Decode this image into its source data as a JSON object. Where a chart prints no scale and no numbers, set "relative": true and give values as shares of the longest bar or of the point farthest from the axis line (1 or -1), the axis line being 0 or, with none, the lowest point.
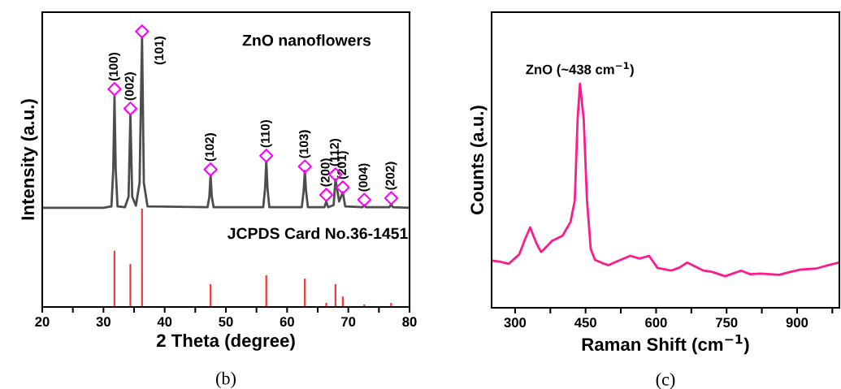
{
  "chart_data": [
    {
      "type": "line",
      "relative": true,
      "xlabel": "2 Theta (degree)",
      "ylabel": "Intensity (a.u.)",
      "tick_labels": "x",
      "xlim": [
        20,
        80
      ],
      "xticks": [
        20,
        {
          "value": 25,
          "label": null
        },
        30,
        {
          "value": 35,
          "label": null
        },
        40,
        {
          "value": 45,
          "label": null
        },
        50,
        {
          "value": 55,
          "label": null
        },
        60,
        {
          "value": 65,
          "label": null
        },
        70,
        {
          "value": 75,
          "label": null
        },
        80
      ],
      "series": [
        {
          "color": "#4d4d4d",
          "x": [
            20,
            30,
            31.3,
            31.6,
            31.8,
            32.0,
            32.3,
            33.5,
            34.1,
            34.4,
            34.7,
            35.3,
            35.9,
            36.3,
            36.6,
            37.2,
            47.0,
            47.3,
            47.5,
            47.7,
            48.0,
            56.1,
            56.4,
            56.6,
            56.8,
            57.1,
            62.4,
            62.7,
            62.9,
            63.1,
            63.4,
            66.1,
            66.4,
            66.7,
            67.6,
            67.9,
            68.5,
            69.1,
            69.5,
            72.3,
            72.6,
            72.9,
            76.7,
            77.0,
            77.3,
            80
          ],
          "values": [
            0.36,
            0.36,
            0.365,
            0.5,
            0.764,
            0.5,
            0.365,
            0.362,
            0.4,
            0.696,
            0.4,
            0.368,
            0.45,
            0.979,
            0.45,
            0.365,
            0.362,
            0.4,
            0.478,
            0.4,
            0.362,
            0.362,
            0.43,
            0.528,
            0.43,
            0.362,
            0.362,
            0.42,
            0.493,
            0.42,
            0.362,
            0.362,
            0.383,
            0.362,
            0.37,
            0.463,
            0.383,
            0.416,
            0.365,
            0.362,
            0.369,
            0.362,
            0.362,
            0.372,
            0.362,
            0.36
          ]
        },
        {
          "type": "scatter",
          "marker": "diamond",
          "color": "#ff00ff",
          "x": [
            31.8,
            34.4,
            36.3,
            47.5,
            56.6,
            62.9,
            66.4,
            67.9,
            69.1,
            72.6,
            77.0
          ],
          "values": [
            0.791,
            0.72,
            1.0,
            0.499,
            0.549,
            0.51,
            0.407,
            0.481,
            0.434,
            0.389,
            0.395
          ]
        },
        {
          "type": "bar",
          "color": "#f03c3c",
          "x": [
            31.8,
            34.4,
            36.3,
            47.5,
            56.6,
            62.9,
            66.4,
            67.9,
            69.1,
            72.6,
            77.0
          ],
          "values": [
            0.204,
            0.156,
            0.357,
            0.083,
            0.115,
            0.103,
            0.015,
            0.083,
            0.038,
            0.009,
            0.015
          ]
        }
      ],
      "annotations": [
        "ZnO nanoflowers",
        "JCPDS Card No.36-1451",
        "(b)",
        {
          "text": "(100)",
          "x": 31.8,
          "y": 0.791
        },
        {
          "text": "(002)",
          "x": 34.4,
          "y": 0.72
        },
        {
          "text": "(101)",
          "x": 36.3,
          "y": 1.0
        },
        {
          "text": "(102)",
          "x": 47.5,
          "y": 0.499
        },
        {
          "text": "(110)",
          "x": 56.6,
          "y": 0.549
        },
        {
          "text": "(103)",
          "x": 62.9,
          "y": 0.51
        },
        {
          "text": "(200)",
          "x": 66.4,
          "y": 0.407
        },
        {
          "text": "(112)",
          "x": 67.9,
          "y": 0.481
        },
        {
          "text": "(201)",
          "x": 69.1,
          "y": 0.434
        },
        {
          "text": "(004)",
          "x": 72.6,
          "y": 0.389
        },
        {
          "text": "(202)",
          "x": 77.0,
          "y": 0.395
        }
      ]
    },
    {
      "type": "line",
      "relative": true,
      "xlabel": "Raman Shift (cm$^{−1}$)",
      "ylabel": "Counts (a.u.)",
      "tick_labels": "x",
      "xlim": [
        250,
        990
      ],
      "xticks": [
        300,
        {
          "value": 375,
          "label": null
        },
        450,
        {
          "value": 525,
          "label": null
        },
        600,
        {
          "value": 675,
          "label": null
        },
        750,
        {
          "value": 825,
          "label": null
        },
        900,
        {
          "value": 975,
          "label": null
        }
      ],
      "series": [
        {
          "color": "#ff1a8c",
          "x": [
            251,
            270,
            286,
            309,
            320,
            332,
            345,
            355,
            362,
            378,
            401,
            418,
            427,
            433,
            438,
            446,
            453,
            461,
            470,
            485,
            499,
            520,
            545,
            565,
            585,
            603,
            632,
            650,
            666,
            701,
            720,
            747,
            781,
            800,
            822,
            862,
            885,
            908,
            940,
            966,
            989
          ],
          "values": [
            0.211,
            0.205,
            0.196,
            0.239,
            0.3,
            0.359,
            0.29,
            0.25,
            0.262,
            0.298,
            0.322,
            0.384,
            0.479,
            0.842,
            1.0,
            0.842,
            0.479,
            0.262,
            0.214,
            0.2,
            0.19,
            0.21,
            0.232,
            0.22,
            0.232,
            0.178,
            0.166,
            0.18,
            0.202,
            0.166,
            0.16,
            0.141,
            0.166,
            0.15,
            0.153,
            0.147,
            0.16,
            0.171,
            0.175,
            0.19,
            0.202
          ]
        }
      ],
      "annotations": [
        {
          "text": "ZnO (~438 cm$^{−1}$)",
          "x": 438,
          "y": 1.0
        },
        "(c)"
      ]
    }
  ]
}
